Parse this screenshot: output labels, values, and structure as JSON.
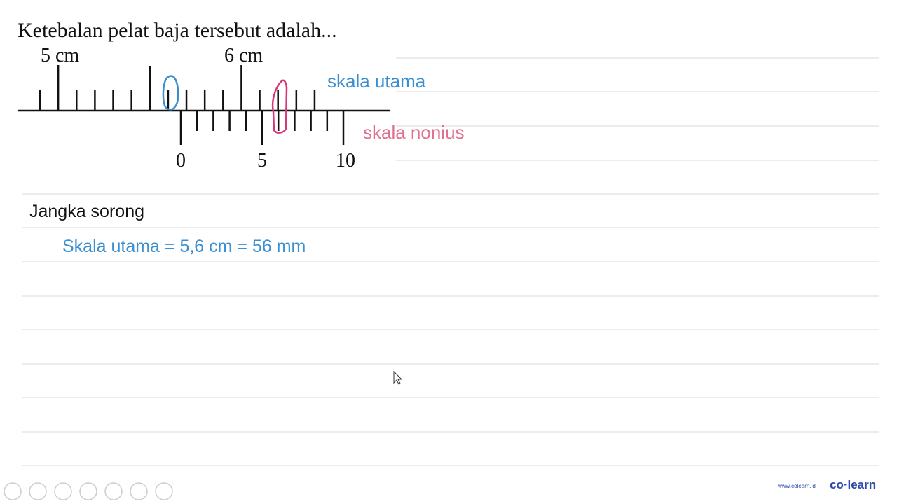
{
  "question": "Ketebalan pelat baja tersebut adalah...",
  "caliper": {
    "main_labels": [
      "5 cm",
      "6 cm"
    ],
    "vernier_labels": [
      "0",
      "5",
      "10"
    ],
    "main_scale_label": "skala utama",
    "vernier_scale_label": "skala nonius"
  },
  "notes": {
    "heading": "Jangka sorong",
    "line1": "Skala utama = 5,6 cm = 56 mm"
  },
  "footer": {
    "website": "www.colearn.id",
    "brand": "co·learn"
  }
}
